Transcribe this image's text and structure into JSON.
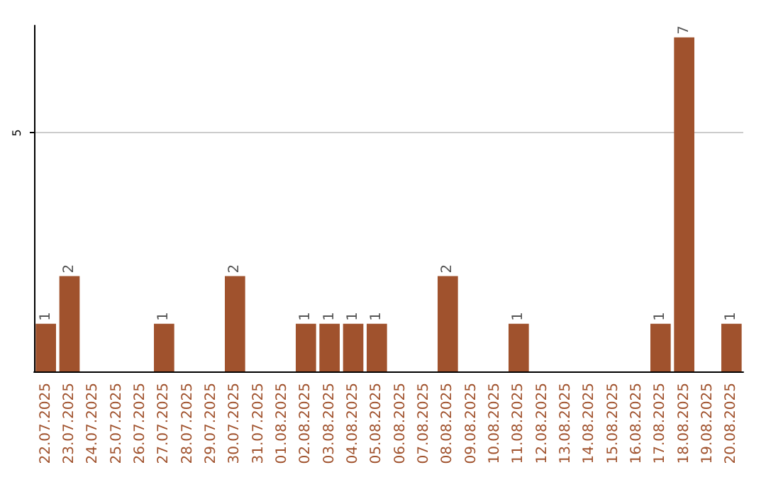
{
  "chart_data": {
    "type": "bar",
    "categories": [
      "22.07.2025",
      "23.07.2025",
      "24.07.2025",
      "25.07.2025",
      "26.07.2025",
      "27.07.2025",
      "28.07.2025",
      "29.07.2025",
      "30.07.2025",
      "31.07.2025",
      "01.08.2025",
      "02.08.2025",
      "03.08.2025",
      "04.08.2025",
      "05.08.2025",
      "06.08.2025",
      "07.08.2025",
      "08.08.2025",
      "09.08.2025",
      "10.08.2025",
      "11.08.2025",
      "12.08.2025",
      "13.08.2025",
      "14.08.2025",
      "15.08.2025",
      "16.08.2025",
      "17.08.2025",
      "18.08.2025",
      "19.08.2025",
      "20.08.2025"
    ],
    "values": [
      1,
      2,
      0,
      0,
      0,
      1,
      0,
      0,
      2,
      0,
      0,
      1,
      1,
      1,
      1,
      0,
      0,
      2,
      0,
      0,
      1,
      0,
      0,
      0,
      0,
      0,
      1,
      7,
      0,
      1
    ],
    "value_labels": [
      "1",
      "2",
      null,
      null,
      null,
      "1",
      null,
      null,
      "2",
      null,
      null,
      "1",
      "1",
      "1",
      "1",
      null,
      null,
      "2",
      null,
      null,
      "1",
      null,
      null,
      null,
      null,
      null,
      "1",
      "7",
      null,
      "1"
    ],
    "color": "#a0522d",
    "ylim": [
      0,
      7.25
    ],
    "yticks": [
      5
    ],
    "grid": "y"
  }
}
